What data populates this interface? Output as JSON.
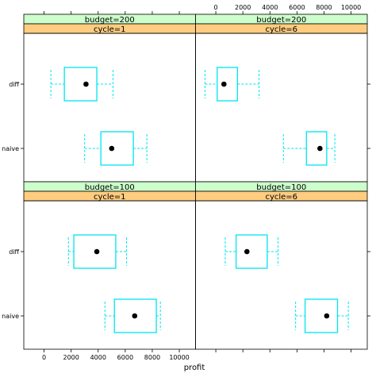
{
  "chart_data": {
    "type": "boxplot",
    "xlabel": "profit",
    "xlim": [
      -1500,
      11200
    ],
    "x_ticks": [
      0,
      2000,
      4000,
      6000,
      8000,
      10000
    ],
    "categories": [
      "diff",
      "naive"
    ],
    "colors": {
      "strip_top": "#ccffcc",
      "strip_bottom": "#ffcc80",
      "box": "#00e5ee",
      "median": "#000000"
    },
    "panels": [
      {
        "row": 0,
        "col": 0,
        "budget_label": "budget=200",
        "cycle_label": "cycle=1",
        "boxes": [
          {
            "category": "diff",
            "whisker_low": 500,
            "q1": 1500,
            "median": 3100,
            "q3": 3900,
            "whisker_high": 5100
          },
          {
            "category": "naive",
            "whisker_low": 3000,
            "q1": 4200,
            "median": 5000,
            "q3": 6600,
            "whisker_high": 7600
          }
        ]
      },
      {
        "row": 0,
        "col": 1,
        "budget_label": "budget=200",
        "cycle_label": "cycle=6",
        "boxes": [
          {
            "category": "diff",
            "whisker_low": -800,
            "q1": 100,
            "median": 600,
            "q3": 1600,
            "whisker_high": 3200
          },
          {
            "category": "naive",
            "whisker_low": 5000,
            "q1": 6700,
            "median": 7700,
            "q3": 8200,
            "whisker_high": 8800
          }
        ]
      },
      {
        "row": 1,
        "col": 0,
        "budget_label": "budget=100",
        "cycle_label": "cycle=1",
        "boxes": [
          {
            "category": "diff",
            "whisker_low": 1800,
            "q1": 2200,
            "median": 3900,
            "q3": 5300,
            "whisker_high": 6100
          },
          {
            "category": "naive",
            "whisker_low": 4500,
            "q1": 5200,
            "median": 6700,
            "q3": 8300,
            "whisker_high": 8600
          }
        ]
      },
      {
        "row": 1,
        "col": 1,
        "budget_label": "budget=100",
        "cycle_label": "cycle=6",
        "boxes": [
          {
            "category": "diff",
            "whisker_low": 700,
            "q1": 1500,
            "median": 2300,
            "q3": 3800,
            "whisker_high": 4600
          },
          {
            "category": "naive",
            "whisker_low": 5900,
            "q1": 6600,
            "median": 8200,
            "q3": 9000,
            "whisker_high": 9800
          }
        ]
      }
    ]
  }
}
